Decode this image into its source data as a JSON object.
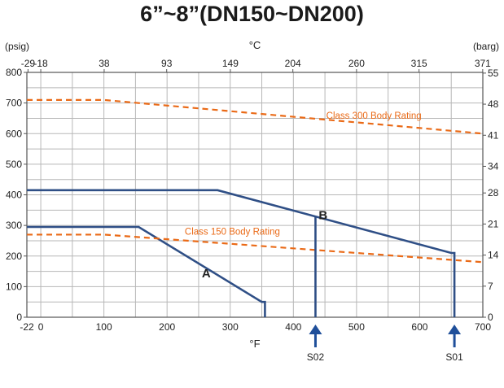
{
  "title": "6”~8”(DN150~DN200)",
  "colors": {
    "grid": "#b7b7b7",
    "curve": "#2f4f86",
    "rating": "#ea6a17",
    "marker": "#1f4f9a"
  },
  "chart_data": {
    "type": "line",
    "title": "6”~8”(DN150~DN200)",
    "xlabel": "°F",
    "ylabel_left": "(psig)",
    "ylabel_right": "(barg)",
    "x2label": "°C",
    "xlim": [
      -22,
      700
    ],
    "ylim": [
      0,
      800
    ],
    "grid": true,
    "x_ticks": [
      {
        "v": -22,
        "label": "-22"
      },
      {
        "v": 0,
        "label": "0"
      },
      {
        "v": 100,
        "label": "100"
      },
      {
        "v": 200,
        "label": "200"
      },
      {
        "v": 300,
        "label": "300"
      },
      {
        "v": 400,
        "label": "400"
      },
      {
        "v": 500,
        "label": "500"
      },
      {
        "v": 600,
        "label": "600"
      },
      {
        "v": 700,
        "label": "700"
      }
    ],
    "x_grid": [
      0,
      50,
      100,
      150,
      200,
      250,
      300,
      350,
      400,
      450,
      500,
      550,
      600,
      650
    ],
    "y_ticks": [
      0,
      100,
      200,
      300,
      400,
      500,
      600,
      700,
      800
    ],
    "y_grid": [
      50,
      100,
      150,
      200,
      250,
      300,
      350,
      400,
      450,
      500,
      550,
      600,
      650,
      700,
      750
    ],
    "top_ticks": [
      {
        "v": -20.2,
        "label": "-29"
      },
      {
        "v": 0,
        "label": "-18"
      },
      {
        "v": 100.4,
        "label": "38"
      },
      {
        "v": 199.4,
        "label": "93"
      },
      {
        "v": 300.2,
        "label": "149"
      },
      {
        "v": 399.2,
        "label": "204"
      },
      {
        "v": 500,
        "label": "260"
      },
      {
        "v": 599,
        "label": "315"
      },
      {
        "v": 699.8,
        "label": "371"
      }
    ],
    "right_ticks": [
      {
        "v": 0,
        "label": "0"
      },
      {
        "v": 101.5,
        "label": "7"
      },
      {
        "v": 203,
        "label": "14"
      },
      {
        "v": 304.6,
        "label": "21"
      },
      {
        "v": 406.1,
        "label": "28"
      },
      {
        "v": 493.1,
        "label": "34"
      },
      {
        "v": 594.6,
        "label": "41"
      },
      {
        "v": 696.2,
        "label": "48"
      },
      {
        "v": 797.7,
        "label": "55"
      }
    ],
    "series": [
      {
        "name": "A",
        "style": "solid",
        "x": [
          -22,
          155,
          350,
          355,
          355
        ],
        "y": [
          295,
          295,
          50,
          50,
          0
        ]
      },
      {
        "name": "B",
        "style": "solid",
        "x": [
          -22,
          280,
          650,
          655,
          655
        ],
        "y": [
          415,
          415,
          210,
          210,
          0
        ]
      },
      {
        "name": "Class 300 Body Rating",
        "style": "dashed",
        "x": [
          -22,
          100,
          700
        ],
        "y": [
          710,
          710,
          600
        ]
      },
      {
        "name": "Class 150 Body Rating",
        "style": "dashed",
        "x": [
          -22,
          100,
          700
        ],
        "y": [
          270,
          270,
          180
        ]
      }
    ],
    "annotations": [
      {
        "text": "A",
        "x": 255,
        "y": 130
      },
      {
        "text": "B",
        "x": 440,
        "y": 320
      },
      {
        "text": "Class 300 Body Rating",
        "x": 452,
        "y": 648
      },
      {
        "text": "Class 150 Body Rating",
        "x": 228,
        "y": 270
      }
    ],
    "verticals": [
      {
        "x": 435,
        "y_from": 0,
        "y_to": 330
      }
    ],
    "markers": [
      {
        "label": "S02",
        "x": 435
      },
      {
        "label": "S01",
        "x": 655
      }
    ]
  }
}
